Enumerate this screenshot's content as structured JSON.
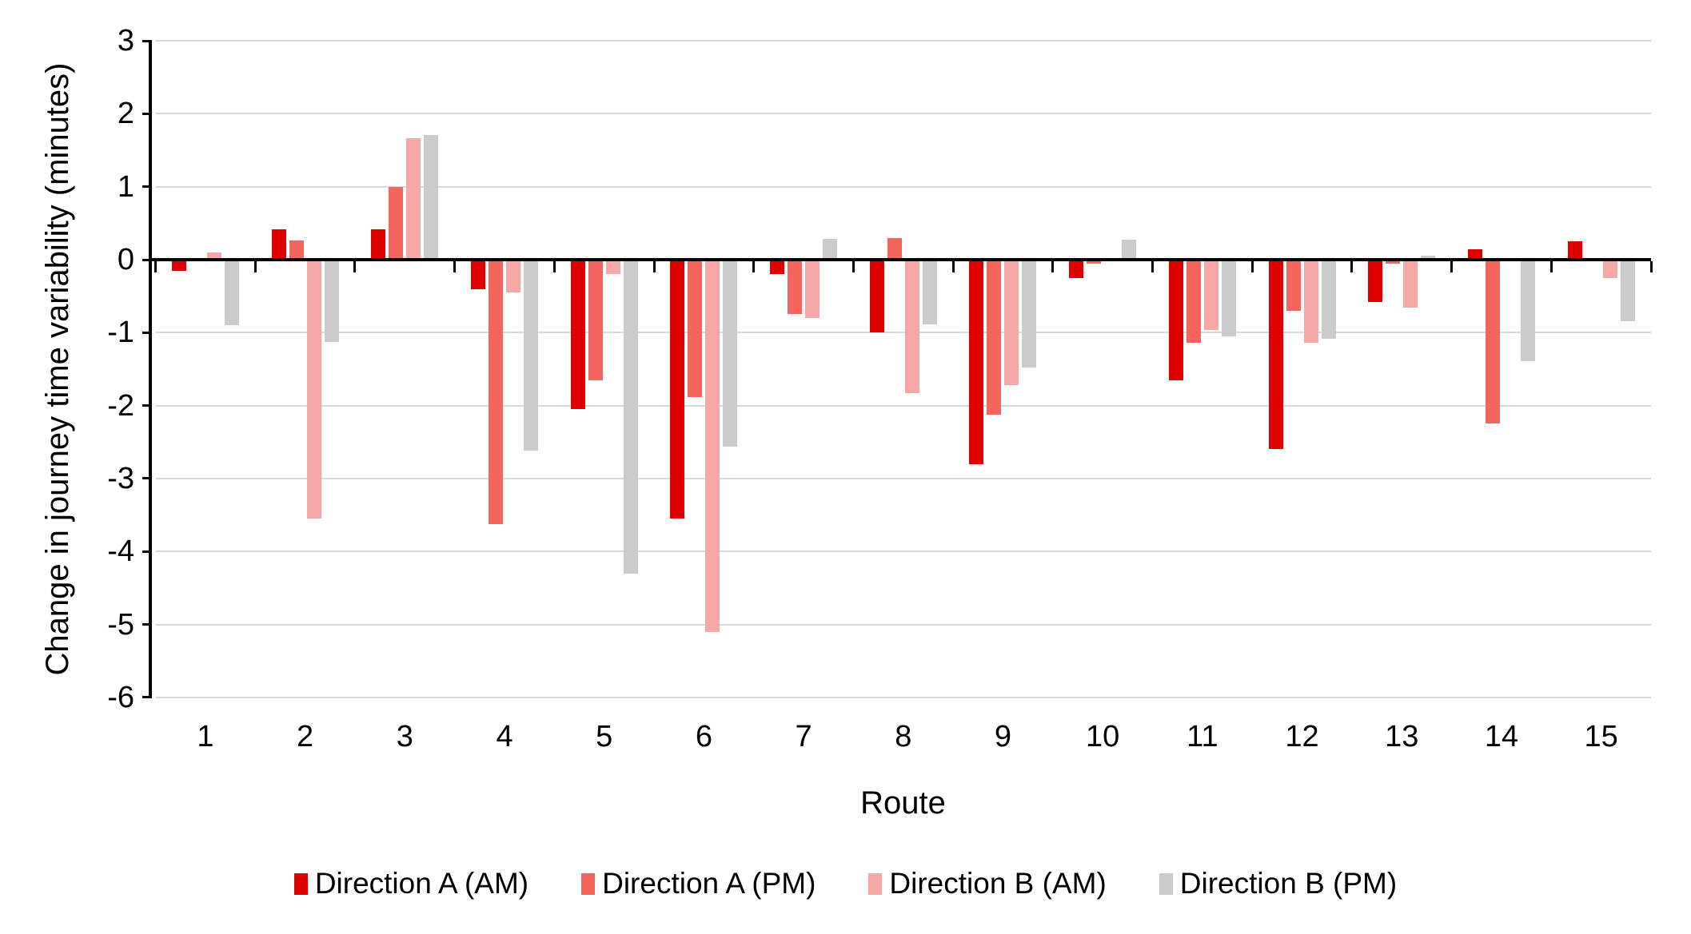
{
  "chart_data": {
    "type": "bar",
    "title": "",
    "xlabel": "Route",
    "ylabel": "Change in journey time variability (minutes)",
    "categories": [
      "1",
      "2",
      "3",
      "4",
      "5",
      "6",
      "7",
      "8",
      "9",
      "10",
      "11",
      "12",
      "13",
      "14",
      "15"
    ],
    "series": [
      {
        "name": "Direction A (AM)",
        "color": "#e00000",
        "values": [
          -0.15,
          0.42,
          0.42,
          -0.4,
          -2.05,
          -3.55,
          -0.2,
          -1.0,
          -2.8,
          -0.25,
          -1.65,
          -2.6,
          -0.58,
          0.14,
          0.25
        ]
      },
      {
        "name": "Direction A (PM)",
        "color": "#f4655f",
        "values": [
          -0.02,
          0.26,
          1.0,
          -3.62,
          -1.65,
          -1.88,
          -0.75,
          0.3,
          -2.13,
          -0.06,
          -1.14,
          -0.7,
          -0.05,
          -2.25,
          0
        ]
      },
      {
        "name": "Direction B (AM)",
        "color": "#f5a8a5",
        "values": [
          0.1,
          -3.55,
          1.67,
          -0.45,
          -0.2,
          -5.1,
          -0.8,
          -1.83,
          -1.72,
          -0.02,
          -0.96,
          -1.14,
          -0.66,
          -0.02,
          -0.25
        ]
      },
      {
        "name": "Direction B (PM)",
        "color": "#cbcbcb",
        "values": [
          -0.9,
          -1.13,
          1.71,
          -2.62,
          -4.3,
          -2.56,
          0.29,
          -0.89,
          -1.48,
          0.27,
          -1.05,
          -1.08,
          0.06,
          -1.39,
          -0.84
        ]
      }
    ],
    "ylim": [
      -6,
      3
    ],
    "ytick_step": 1,
    "yticks": [
      "3",
      "2",
      "1",
      "0",
      "-1",
      "-2",
      "-3",
      "-4",
      "-5",
      "-6"
    ],
    "grid": "horizontal",
    "gridline_color": "#d9d9d9",
    "axis_color": "#000000",
    "legend_position": "bottom"
  }
}
